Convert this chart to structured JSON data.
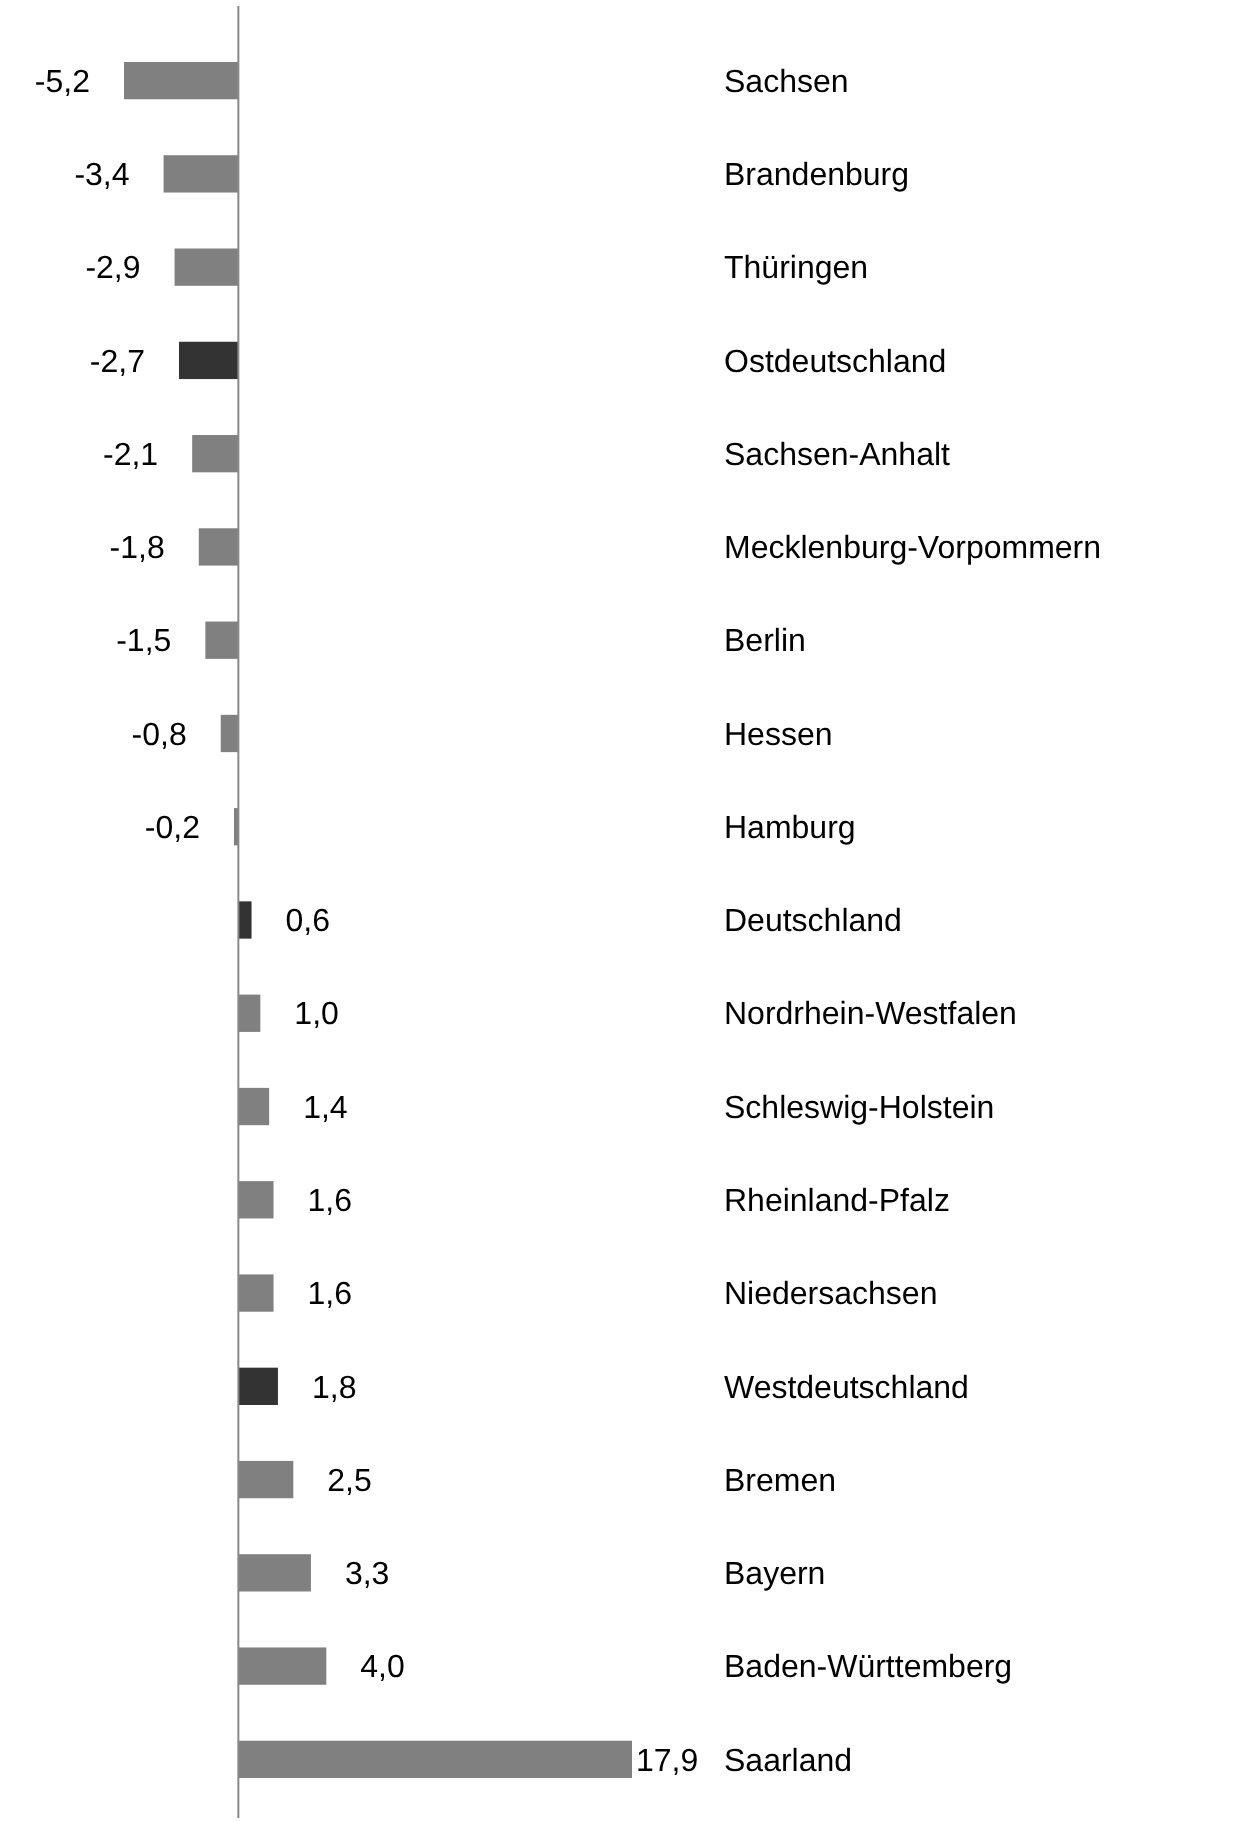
{
  "chart_data": {
    "type": "bar",
    "orientation": "horizontal",
    "categories": [
      "Sachsen",
      "Brandenburg",
      "Thüringen",
      "Ostdeutschland",
      "Sachsen-Anhalt",
      "Mecklenburg-Vorpommern",
      "Berlin",
      "Hessen",
      "Hamburg",
      "Deutschland",
      "Nordrhein-Westfalen",
      "Schleswig-Holstein",
      "Rheinland-Pfalz",
      "Niedersachsen",
      "Westdeutschland",
      "Bremen",
      "Bayern",
      "Baden-Württemberg",
      "Saarland"
    ],
    "values": [
      -5.2,
      -3.4,
      -2.9,
      -2.7,
      -2.1,
      -1.8,
      -1.5,
      -0.8,
      -0.2,
      0.6,
      1.0,
      1.4,
      1.6,
      1.6,
      1.8,
      2.5,
      3.3,
      4.0,
      17.9
    ],
    "value_labels": [
      "-5,2",
      "-3,4",
      "-2,9",
      "-2,7",
      "-2,1",
      "-1,8",
      "-1,5",
      "-0,8",
      "-0,2",
      "0,6",
      "1,0",
      "1,4",
      "1,6",
      "1,6",
      "1,8",
      "2,5",
      "3,3",
      "4,0",
      "17,9"
    ],
    "colors": [
      "#808080",
      "#808080",
      "#808080",
      "#333333",
      "#808080",
      "#808080",
      "#808080",
      "#808080",
      "#808080",
      "#333333",
      "#808080",
      "#808080",
      "#808080",
      "#808080",
      "#333333",
      "#808080",
      "#808080",
      "#808080",
      "#808080"
    ]
  }
}
